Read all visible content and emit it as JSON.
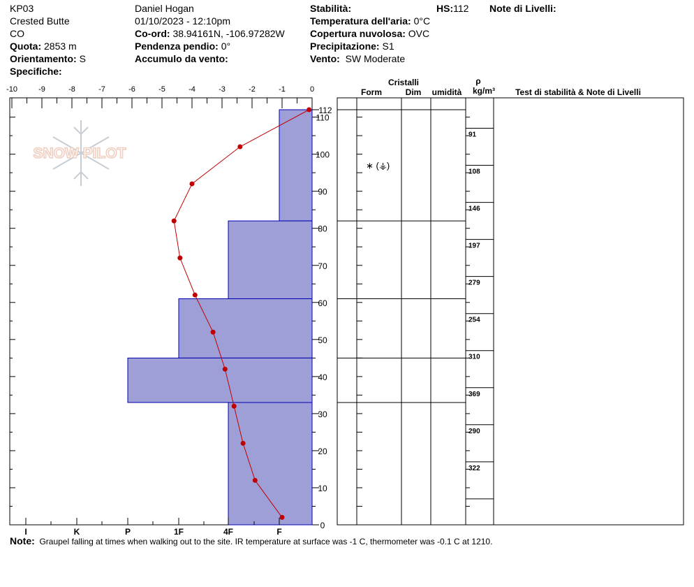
{
  "header": {
    "profile_id": "KP03",
    "location": "Crested Butte",
    "state": "CO",
    "observer": "Daniel Hogan",
    "datetime": "01/10/2023 - 12:10pm",
    "elevation_label": "Quota:",
    "elevation_value": "2853 m",
    "aspect_label": "Orientamento:",
    "aspect_value": "S",
    "specifics_label": "Specifiche:",
    "coord_label": "Co-ord:",
    "coord_value": "38.94161N, -106.97282W",
    "slope_label": "Pendenza pendio:",
    "slope_value": "0°",
    "wind_loading_label": "Accumulo da vento:",
    "stability_label": "Stabilità:",
    "air_temp_label": "Temperatura dell'aria:",
    "air_temp_value": "0°C",
    "sky_label": "Copertura nuvolosa:",
    "sky_value": "OVC",
    "precip_label": "Precipitazione:",
    "precip_value": "S1",
    "wind_label": "Vento:",
    "wind_value": "SW Moderate",
    "hs_label": "HS:",
    "hs_value": "112",
    "layer_notes_label": "Note di Livelli:"
  },
  "watermark": {
    "text": "SNOW PILOT"
  },
  "columns": {
    "crystals": "Cristalli",
    "form": "Form",
    "size": "Dim",
    "moisture": "umidità",
    "rho": "ρ",
    "density_unit": "kg/m³",
    "tests": "Test di stabilità & Note di Livelli"
  },
  "note": {
    "label": "Note:",
    "text": "Graupel falling at times when walking out to the site. IR temperature at surface was -1 C, thermometer was -0.1 C at 1210."
  },
  "chart_data": {
    "type": "snow_profile",
    "temperature_axis": {
      "label_ticks": [
        "-10",
        "-9",
        "-8",
        "-7",
        "-6",
        "-5",
        "-4",
        "-3",
        "-2",
        "-1",
        "0"
      ],
      "range": [
        -10,
        0
      ]
    },
    "hardness_axis": {
      "labels": [
        "I",
        "K",
        "P",
        "1F",
        "4F",
        "F"
      ]
    },
    "height_axis": {
      "range": [
        0,
        112
      ],
      "ticks": [
        0,
        10,
        20,
        30,
        40,
        50,
        60,
        70,
        80,
        90,
        100,
        110
      ],
      "top_label": "112"
    },
    "temperature_profile": [
      {
        "height": 112,
        "temp": -0.1
      },
      {
        "height": 102,
        "temp": -2.4
      },
      {
        "height": 92,
        "temp": -4.0
      },
      {
        "height": 82,
        "temp": -4.6
      },
      {
        "height": 72,
        "temp": -4.4
      },
      {
        "height": 62,
        "temp": -3.9
      },
      {
        "height": 52,
        "temp": -3.3
      },
      {
        "height": 42,
        "temp": -2.9
      },
      {
        "height": 32,
        "temp": -2.6
      },
      {
        "height": 22,
        "temp": -2.3
      },
      {
        "height": 12,
        "temp": -1.9
      },
      {
        "height": 2,
        "temp": -1.0
      }
    ],
    "layers": [
      {
        "top": 112,
        "bottom": 82,
        "hardness": "F"
      },
      {
        "top": 82,
        "bottom": 61,
        "hardness": "4F"
      },
      {
        "top": 61,
        "bottom": 45,
        "hardness": "1F"
      },
      {
        "top": 45,
        "bottom": 33,
        "hardness": "P"
      },
      {
        "top": 33,
        "bottom": 0,
        "hardness": "4F"
      }
    ],
    "grain_symbols": [
      {
        "height": 97,
        "symbol": "∗ (⚶)"
      }
    ],
    "densities": [
      {
        "top": 107,
        "bottom": 97,
        "value": "91"
      },
      {
        "top": 97,
        "bottom": 87,
        "value": "108"
      },
      {
        "top": 87,
        "bottom": 77,
        "value": "146"
      },
      {
        "top": 77,
        "bottom": 67,
        "value": "197"
      },
      {
        "top": 67,
        "bottom": 57,
        "value": "279"
      },
      {
        "top": 57,
        "bottom": 47,
        "value": "254"
      },
      {
        "top": 47,
        "bottom": 37,
        "value": "310"
      },
      {
        "top": 37,
        "bottom": 27,
        "value": "369"
      },
      {
        "top": 27,
        "bottom": 17,
        "value": "290"
      },
      {
        "top": 17,
        "bottom": 7,
        "value": "322"
      }
    ],
    "colors": {
      "layer_fill": "#9f9fd8",
      "layer_stroke": "#0000b0",
      "temp_line": "#c00000"
    }
  }
}
